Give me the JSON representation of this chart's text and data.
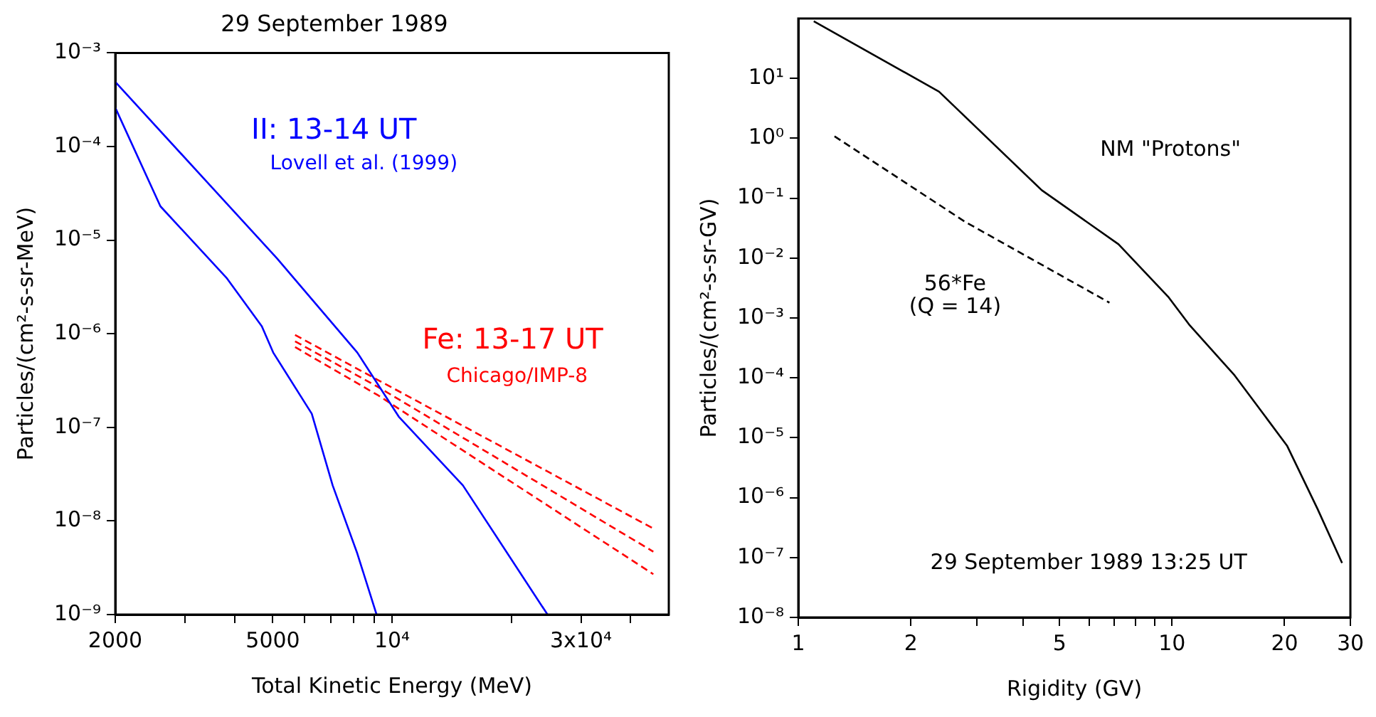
{
  "chart_data": [
    {
      "type": "line",
      "title": "29 September 1989",
      "xlabel": "Total Kinetic Energy (MeV)",
      "ylabel": "Particles/(cm²-s-sr-MeV)",
      "log": "xy",
      "grid": false,
      "legend": false,
      "marker": "none",
      "xlim": [
        2000,
        50000
      ],
      "xticks": [
        2000,
        {
          "value": 3000,
          "label": null
        },
        {
          "value": 4000,
          "label": null
        },
        5000,
        {
          "value": 6000,
          "label": null
        },
        {
          "value": 7000,
          "label": null
        },
        {
          "value": 8000,
          "label": null
        },
        {
          "value": 9000,
          "label": null
        },
        {
          "value": 10000,
          "label": "10⁴"
        },
        {
          "value": 20000,
          "label": null
        },
        {
          "value": 30000,
          "label": "3x10⁴"
        },
        {
          "value": 40000,
          "label": null
        }
      ],
      "ylim": [
        1e-09,
        0.001
      ],
      "yticks": [
        {
          "value": 0.001,
          "label": "10⁻³"
        },
        {
          "value": 0.0001,
          "label": "10⁻⁴"
        },
        {
          "value": 1e-05,
          "label": "10⁻⁵"
        },
        {
          "value": 1e-06,
          "label": "10⁻⁶"
        },
        {
          "value": 1e-07,
          "label": "10⁻⁷"
        },
        {
          "value": 1e-08,
          "label": "10⁻⁸"
        },
        {
          "value": 1e-09,
          "label": "10⁻⁹"
        }
      ],
      "series": [
        {
          "color": "#0000ff",
          "line_style": "solid",
          "x": [
            2000,
            5120,
            8170,
            10400,
            15100,
            24700
          ],
          "values": [
            0.00049,
            6.4e-06,
            6.3e-07,
            1.3e-07,
            2.4e-08,
            1e-09
          ]
        },
        {
          "color": "#0000ff",
          "line_style": "solid",
          "x": [
            2000,
            2600,
            3830,
            4690,
            5010,
            6270,
            7080,
            8170,
            9140
          ],
          "values": [
            0.00026,
            2.3e-05,
            3.9e-06,
            1.2e-06,
            6.3e-07,
            1.4e-07,
            2.4e-08,
            4.5e-09,
            1e-09
          ]
        },
        {
          "color": "#ff0000",
          "line_style": "dashed",
          "x": [
            5690,
            9220,
            45700
          ],
          "values": [
            9.7e-07,
            3.2e-07,
            8.3e-09
          ]
        },
        {
          "color": "#ff0000",
          "line_style": "dashed",
          "x": [
            5690,
            9220,
            45700
          ],
          "values": [
            8.3e-07,
            2.7e-07,
            4.7e-09
          ]
        },
        {
          "color": "#ff0000",
          "line_style": "dashed",
          "x": [
            5690,
            9220,
            45700
          ],
          "values": [
            7.2e-07,
            2.2e-07,
            2.7e-09
          ]
        }
      ],
      "annotations": [
        "II: 13-14 UT",
        "Lovell et al. (1999)",
        "Fe: 13-17 UT",
        "Chicago/IMP-8"
      ]
    },
    {
      "type": "line",
      "xlabel": "Rigidity (GV)",
      "ylabel": "Particles/(cm²-s-sr-GV)",
      "log": "xy",
      "grid": false,
      "legend": false,
      "marker": "none",
      "xlim": [
        1,
        30
      ],
      "xticks": [
        1,
        2,
        {
          "value": 3,
          "label": null
        },
        {
          "value": 4,
          "label": null
        },
        5,
        {
          "value": 6,
          "label": null
        },
        {
          "value": 7,
          "label": null
        },
        {
          "value": 8,
          "label": null
        },
        {
          "value": 9,
          "label": null
        },
        10,
        20,
        30
      ],
      "ylim": [
        1e-08,
        100
      ],
      "yticks": [
        {
          "value": 10,
          "label": "10¹"
        },
        {
          "value": 1,
          "label": "10⁰"
        },
        {
          "value": 0.1,
          "label": "10⁻¹"
        },
        {
          "value": 0.01,
          "label": "10⁻²"
        },
        {
          "value": 0.001,
          "label": "10⁻³"
        },
        {
          "value": 0.0001,
          "label": "10⁻⁴"
        },
        {
          "value": 1e-05,
          "label": "10⁻⁵"
        },
        {
          "value": 1e-06,
          "label": "10⁻⁶"
        },
        {
          "value": 1e-07,
          "label": "10⁻⁷"
        },
        {
          "value": 1e-08,
          "label": "10⁻⁸"
        }
      ],
      "series": [
        {
          "color": "#000000",
          "line_style": "solid",
          "x": [
            1.1,
            2.38,
            4.48,
            7.19,
            9.8,
            11.1,
            14.7,
            20.3,
            24.5,
            28.5
          ],
          "values": [
            90,
            6,
            0.136,
            0.017,
            0.0022,
            0.00078,
            0.00011,
            7.4e-06,
            6.5e-07,
            8.1e-08
          ]
        },
        {
          "color": "#000000",
          "line_style": "dashed",
          "x": [
            1.25,
            2.8,
            6.8
          ],
          "values": [
            1.08,
            0.04,
            0.0018
          ]
        }
      ],
      "annotations": [
        "NM \"Protons\"",
        "56*Fe",
        "(Q = 14)",
        "29 September 1989 13:25 UT"
      ]
    }
  ]
}
